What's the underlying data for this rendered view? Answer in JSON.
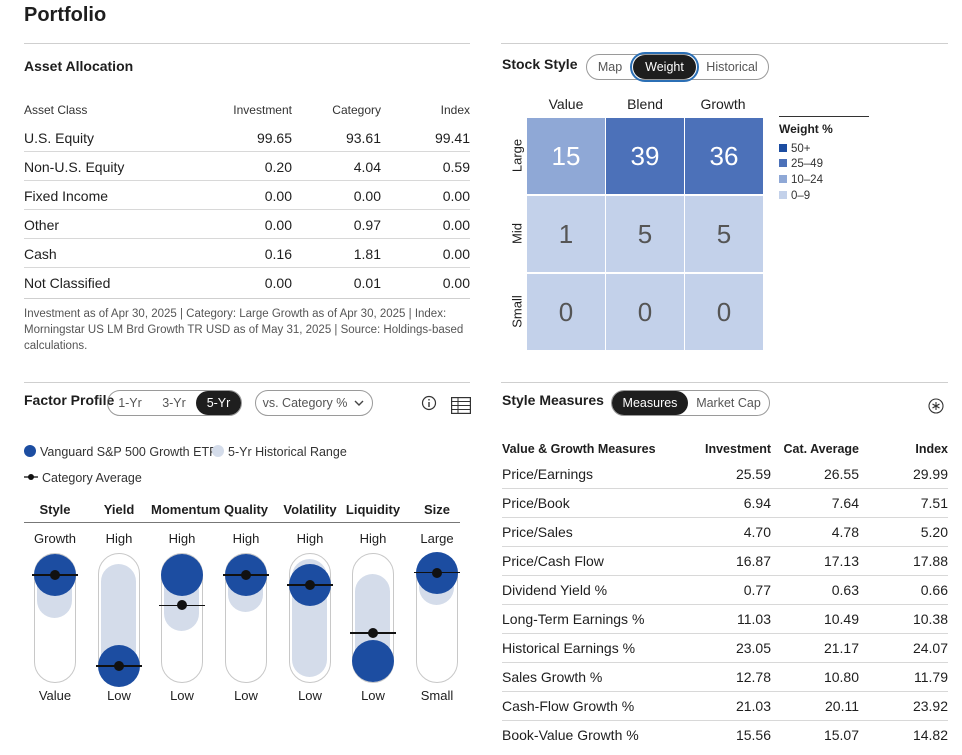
{
  "page_title": "Portfolio",
  "asset_allocation": {
    "title": "Asset Allocation",
    "columns": [
      "Asset Class",
      "Investment",
      "Category",
      "Index"
    ],
    "rows": [
      [
        "U.S. Equity",
        "99.65",
        "93.61",
        "99.41"
      ],
      [
        "Non-U.S. Equity",
        "0.20",
        "4.04",
        "0.59"
      ],
      [
        "Fixed Income",
        "0.00",
        "0.00",
        "0.00"
      ],
      [
        "Other",
        "0.00",
        "0.97",
        "0.00"
      ],
      [
        "Cash",
        "0.16",
        "1.81",
        "0.00"
      ],
      [
        "Not Classified",
        "0.00",
        "0.01",
        "0.00"
      ]
    ],
    "footnote": "Investment as of Apr 30, 2025 | Category: Large Growth as of Apr 30, 2025 | Index: Morningstar US LM Brd Growth TR USD as of May 31, 2025 | Source: Holdings-based calculations."
  },
  "stock_style": {
    "title": "Stock Style",
    "tabs": [
      "Map",
      "Weight",
      "Historical"
    ],
    "active_tab": "Weight",
    "columns": [
      "Value",
      "Blend",
      "Growth"
    ],
    "rows": [
      "Large",
      "Mid",
      "Small"
    ],
    "grid": [
      [
        15,
        39,
        36
      ],
      [
        1,
        5,
        5
      ],
      [
        0,
        0,
        0
      ]
    ],
    "legend_title": "Weight %",
    "legend": [
      {
        "label": "50+",
        "color": "#1c4da1"
      },
      {
        "label": "25–49",
        "color": "#4c71b9"
      },
      {
        "label": "10–24",
        "color": "#8fa8d6"
      },
      {
        "label": "0–9",
        "color": "#c3d1ea"
      }
    ]
  },
  "factor_profile": {
    "title": "Factor Profile",
    "periods": [
      "1-Yr",
      "3-Yr",
      "5-Yr"
    ],
    "active_period": "5-Yr",
    "compare_dropdown": "vs. Category %",
    "legend_fund": "Vanguard S&P 500 Growth ETF",
    "legend_range": "5-Yr Historical Range",
    "legend_category": "Category Average",
    "fund_color": "#1c4da1",
    "range_color": "#d4dcea",
    "factors": [
      {
        "name": "Style",
        "top": "Growth",
        "bottom": "Value",
        "fund": 0.84,
        "category": 0.84,
        "range_lo": 0.5,
        "range_hi": 0.97
      },
      {
        "name": "Yield",
        "top": "High",
        "bottom": "Low",
        "fund": 0.12,
        "category": 0.12,
        "range_lo": 0.03,
        "range_hi": 0.93
      },
      {
        "name": "Momentum",
        "top": "High",
        "bottom": "Low",
        "fund": 0.84,
        "category": 0.6,
        "range_lo": 0.4,
        "range_hi": 0.97
      },
      {
        "name": "Quality",
        "top": "High",
        "bottom": "Low",
        "fund": 0.84,
        "category": 0.84,
        "range_lo": 0.55,
        "range_hi": 0.97
      },
      {
        "name": "Volatility",
        "top": "High",
        "bottom": "Low",
        "fund": 0.76,
        "category": 0.76,
        "range_lo": 0.03,
        "range_hi": 0.97
      },
      {
        "name": "Liquidity",
        "top": "High",
        "bottom": "Low",
        "fund": 0.16,
        "category": 0.38,
        "range_lo": 0.03,
        "range_hi": 0.85
      },
      {
        "name": "Size",
        "top": "Large",
        "bottom": "Small",
        "fund": 0.86,
        "category": 0.86,
        "range_lo": 0.6,
        "range_hi": 0.97
      }
    ]
  },
  "style_measures": {
    "title": "Style Measures",
    "tabs": [
      "Measures",
      "Market Cap"
    ],
    "active_tab": "Measures",
    "columns": [
      "Value & Growth Measures",
      "Investment",
      "Cat. Average",
      "Index"
    ],
    "rows": [
      [
        "Price/Earnings",
        "25.59",
        "26.55",
        "29.99"
      ],
      [
        "Price/Book",
        "6.94",
        "7.64",
        "7.51"
      ],
      [
        "Price/Sales",
        "4.70",
        "4.78",
        "5.20"
      ],
      [
        "Price/Cash Flow",
        "16.87",
        "17.13",
        "17.88"
      ],
      [
        "Dividend Yield %",
        "0.77",
        "0.63",
        "0.66"
      ],
      [
        "Long-Term Earnings %",
        "11.03",
        "10.49",
        "10.38"
      ],
      [
        "Historical Earnings %",
        "23.05",
        "21.17",
        "24.07"
      ],
      [
        "Sales Growth %",
        "12.78",
        "10.80",
        "11.79"
      ],
      [
        "Cash-Flow Growth %",
        "21.03",
        "20.11",
        "23.92"
      ],
      [
        "Book-Value Growth %",
        "15.56",
        "15.07",
        "14.82"
      ]
    ]
  },
  "icons": [
    "info-icon",
    "table-icon",
    "settings-icon",
    "chevron-down-icon"
  ]
}
